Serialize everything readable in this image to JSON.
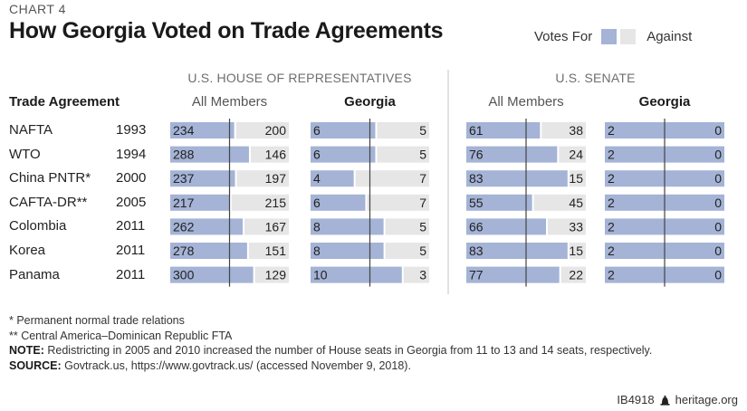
{
  "header": {
    "chart_label": "CHART 4",
    "title": "How Georgia Voted on Trade Agreements"
  },
  "legend": {
    "for_label": "Votes For",
    "against_label": "Against"
  },
  "colors": {
    "for": "#a4b3d6",
    "against": "#e6e6e6",
    "midline": "#444444"
  },
  "columns": {
    "trade_agreement": "Trade Agreement",
    "house_section": "U.S. HOUSE OF REPRESENTATIVES",
    "senate_section": "U.S. SENATE",
    "house_all": "All Members",
    "house_georgia": "Georgia",
    "senate_all": "All Members",
    "senate_georgia": "Georgia"
  },
  "chart_data": {
    "type": "bar",
    "title": "How Georgia Voted on Trade Agreements",
    "subtype": "stacked-horizontal-100pct",
    "legend": [
      "Votes For",
      "Against"
    ],
    "legend_position": "top-right",
    "categories": [
      "NAFTA",
      "WTO",
      "China PNTR*",
      "CAFTA-DR**",
      "Colombia",
      "Korea",
      "Panama"
    ],
    "years": [
      "1993",
      "1994",
      "2000",
      "2005",
      "2011",
      "2011",
      "2011"
    ],
    "panels": [
      {
        "name": "House All Members",
        "for": [
          234,
          288,
          237,
          217,
          262,
          278,
          300
        ],
        "against": [
          200,
          146,
          197,
          215,
          167,
          151,
          129
        ]
      },
      {
        "name": "House Georgia",
        "for": [
          6,
          6,
          4,
          6,
          8,
          8,
          10
        ],
        "against": [
          5,
          5,
          7,
          7,
          5,
          5,
          3
        ]
      },
      {
        "name": "Senate All Members",
        "for": [
          61,
          76,
          83,
          55,
          66,
          83,
          77
        ],
        "against": [
          38,
          24,
          15,
          45,
          33,
          15,
          22
        ]
      },
      {
        "name": "Senate Georgia",
        "for": [
          2,
          2,
          2,
          2,
          2,
          2,
          2
        ],
        "against": [
          0,
          0,
          0,
          0,
          0,
          0,
          0
        ]
      }
    ],
    "midline": "50% of votes cast"
  },
  "notes": {
    "footnote1": "* Permanent normal trade relations",
    "footnote2": "** Central America–Dominican Republic FTA",
    "note_label": "NOTE:",
    "note_text": " Redistricting in 2005 and 2010 increased the number of House seats in Georgia from 11 to 13 and 14 seats, respectively.",
    "source_label": "SOURCE:",
    "source_text": " Govtrack.us, https://www.govtrack.us/ (accessed November 9, 2018)."
  },
  "footer": {
    "id": "IB4918",
    "site": "heritage.org"
  }
}
